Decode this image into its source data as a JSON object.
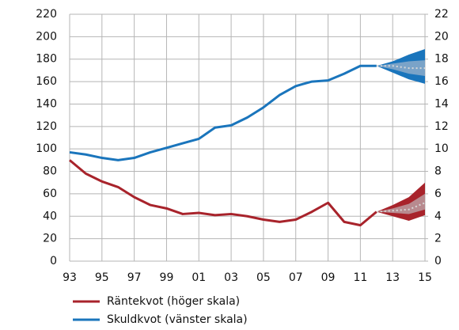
{
  "chart_data": {
    "type": "line",
    "categories": [
      "93",
      null,
      "95",
      null,
      "97",
      null,
      "99",
      null,
      "01",
      null,
      "03",
      null,
      "05",
      null,
      "07",
      null,
      "09",
      null,
      "11",
      null,
      "13",
      null,
      "15"
    ],
    "ylim": [
      0,
      220
    ],
    "yticks": [
      0,
      20,
      40,
      60,
      80,
      100,
      120,
      140,
      160,
      180,
      200,
      220
    ],
    "y2lim": [
      0,
      22
    ],
    "y2ticks": [
      0,
      2,
      4,
      6,
      8,
      10,
      12,
      14,
      16,
      18,
      20,
      22
    ],
    "grid": true,
    "legend": "bottom",
    "series": [
      {
        "name": "Räntekvot (höger skala)",
        "color": "#a8232b",
        "axis": "y2",
        "band_color": "#a8232b",
        "inner_color": "#b88a8f",
        "values": [
          9.0,
          7.8,
          7.1,
          6.6,
          5.7,
          5.0,
          4.7,
          4.2,
          4.3,
          4.1,
          4.2,
          4.0,
          3.7,
          3.5,
          3.7,
          4.4,
          5.2,
          3.5,
          3.2,
          4.4,
          null,
          null,
          null
        ],
        "forecast": {
          "center": [
            null,
            null,
            null,
            null,
            null,
            null,
            null,
            null,
            null,
            null,
            null,
            null,
            null,
            null,
            null,
            null,
            null,
            null,
            null,
            4.4,
            4.5,
            4.6,
            5.2
          ],
          "outer_high": [
            null,
            null,
            null,
            null,
            null,
            null,
            null,
            null,
            null,
            null,
            null,
            null,
            null,
            null,
            null,
            null,
            null,
            null,
            null,
            4.4,
            5.0,
            5.7,
            7.0
          ],
          "outer_low": [
            null,
            null,
            null,
            null,
            null,
            null,
            null,
            null,
            null,
            null,
            null,
            null,
            null,
            null,
            null,
            null,
            null,
            null,
            null,
            4.4,
            4.0,
            3.6,
            4.1
          ],
          "inner_high": [
            null,
            null,
            null,
            null,
            null,
            null,
            null,
            null,
            null,
            null,
            null,
            null,
            null,
            null,
            null,
            null,
            null,
            null,
            null,
            4.4,
            4.7,
            5.1,
            6.0
          ],
          "inner_low": [
            null,
            null,
            null,
            null,
            null,
            null,
            null,
            null,
            null,
            null,
            null,
            null,
            null,
            null,
            null,
            null,
            null,
            null,
            null,
            4.4,
            4.3,
            4.2,
            4.6
          ]
        }
      },
      {
        "name": "Skuldkvot (vänster skala)",
        "color": "#1a75bc",
        "axis": "y",
        "band_color": "#1a75bc",
        "inner_color": "#7aa3c8",
        "values": [
          97,
          95,
          92,
          90,
          92,
          97,
          101,
          105,
          109,
          119,
          121,
          128,
          137,
          148,
          156,
          160,
          161,
          167,
          174,
          174,
          null,
          null,
          null
        ],
        "forecast": {
          "center": [
            null,
            null,
            null,
            null,
            null,
            null,
            null,
            null,
            null,
            null,
            null,
            null,
            null,
            null,
            null,
            null,
            null,
            null,
            null,
            174,
            174,
            172,
            172
          ],
          "outer_high": [
            null,
            null,
            null,
            null,
            null,
            null,
            null,
            null,
            null,
            null,
            null,
            null,
            null,
            null,
            null,
            null,
            null,
            null,
            null,
            174,
            178,
            184,
            189
          ],
          "outer_low": [
            null,
            null,
            null,
            null,
            null,
            null,
            null,
            null,
            null,
            null,
            null,
            null,
            null,
            null,
            null,
            null,
            null,
            null,
            null,
            174,
            168,
            162,
            158
          ],
          "inner_high": [
            null,
            null,
            null,
            null,
            null,
            null,
            null,
            null,
            null,
            null,
            null,
            null,
            null,
            null,
            null,
            null,
            null,
            null,
            null,
            174,
            176,
            178,
            179
          ],
          "inner_low": [
            null,
            null,
            null,
            null,
            null,
            null,
            null,
            null,
            null,
            null,
            null,
            null,
            null,
            null,
            null,
            null,
            null,
            null,
            null,
            174,
            171,
            167,
            165
          ]
        }
      }
    ]
  }
}
